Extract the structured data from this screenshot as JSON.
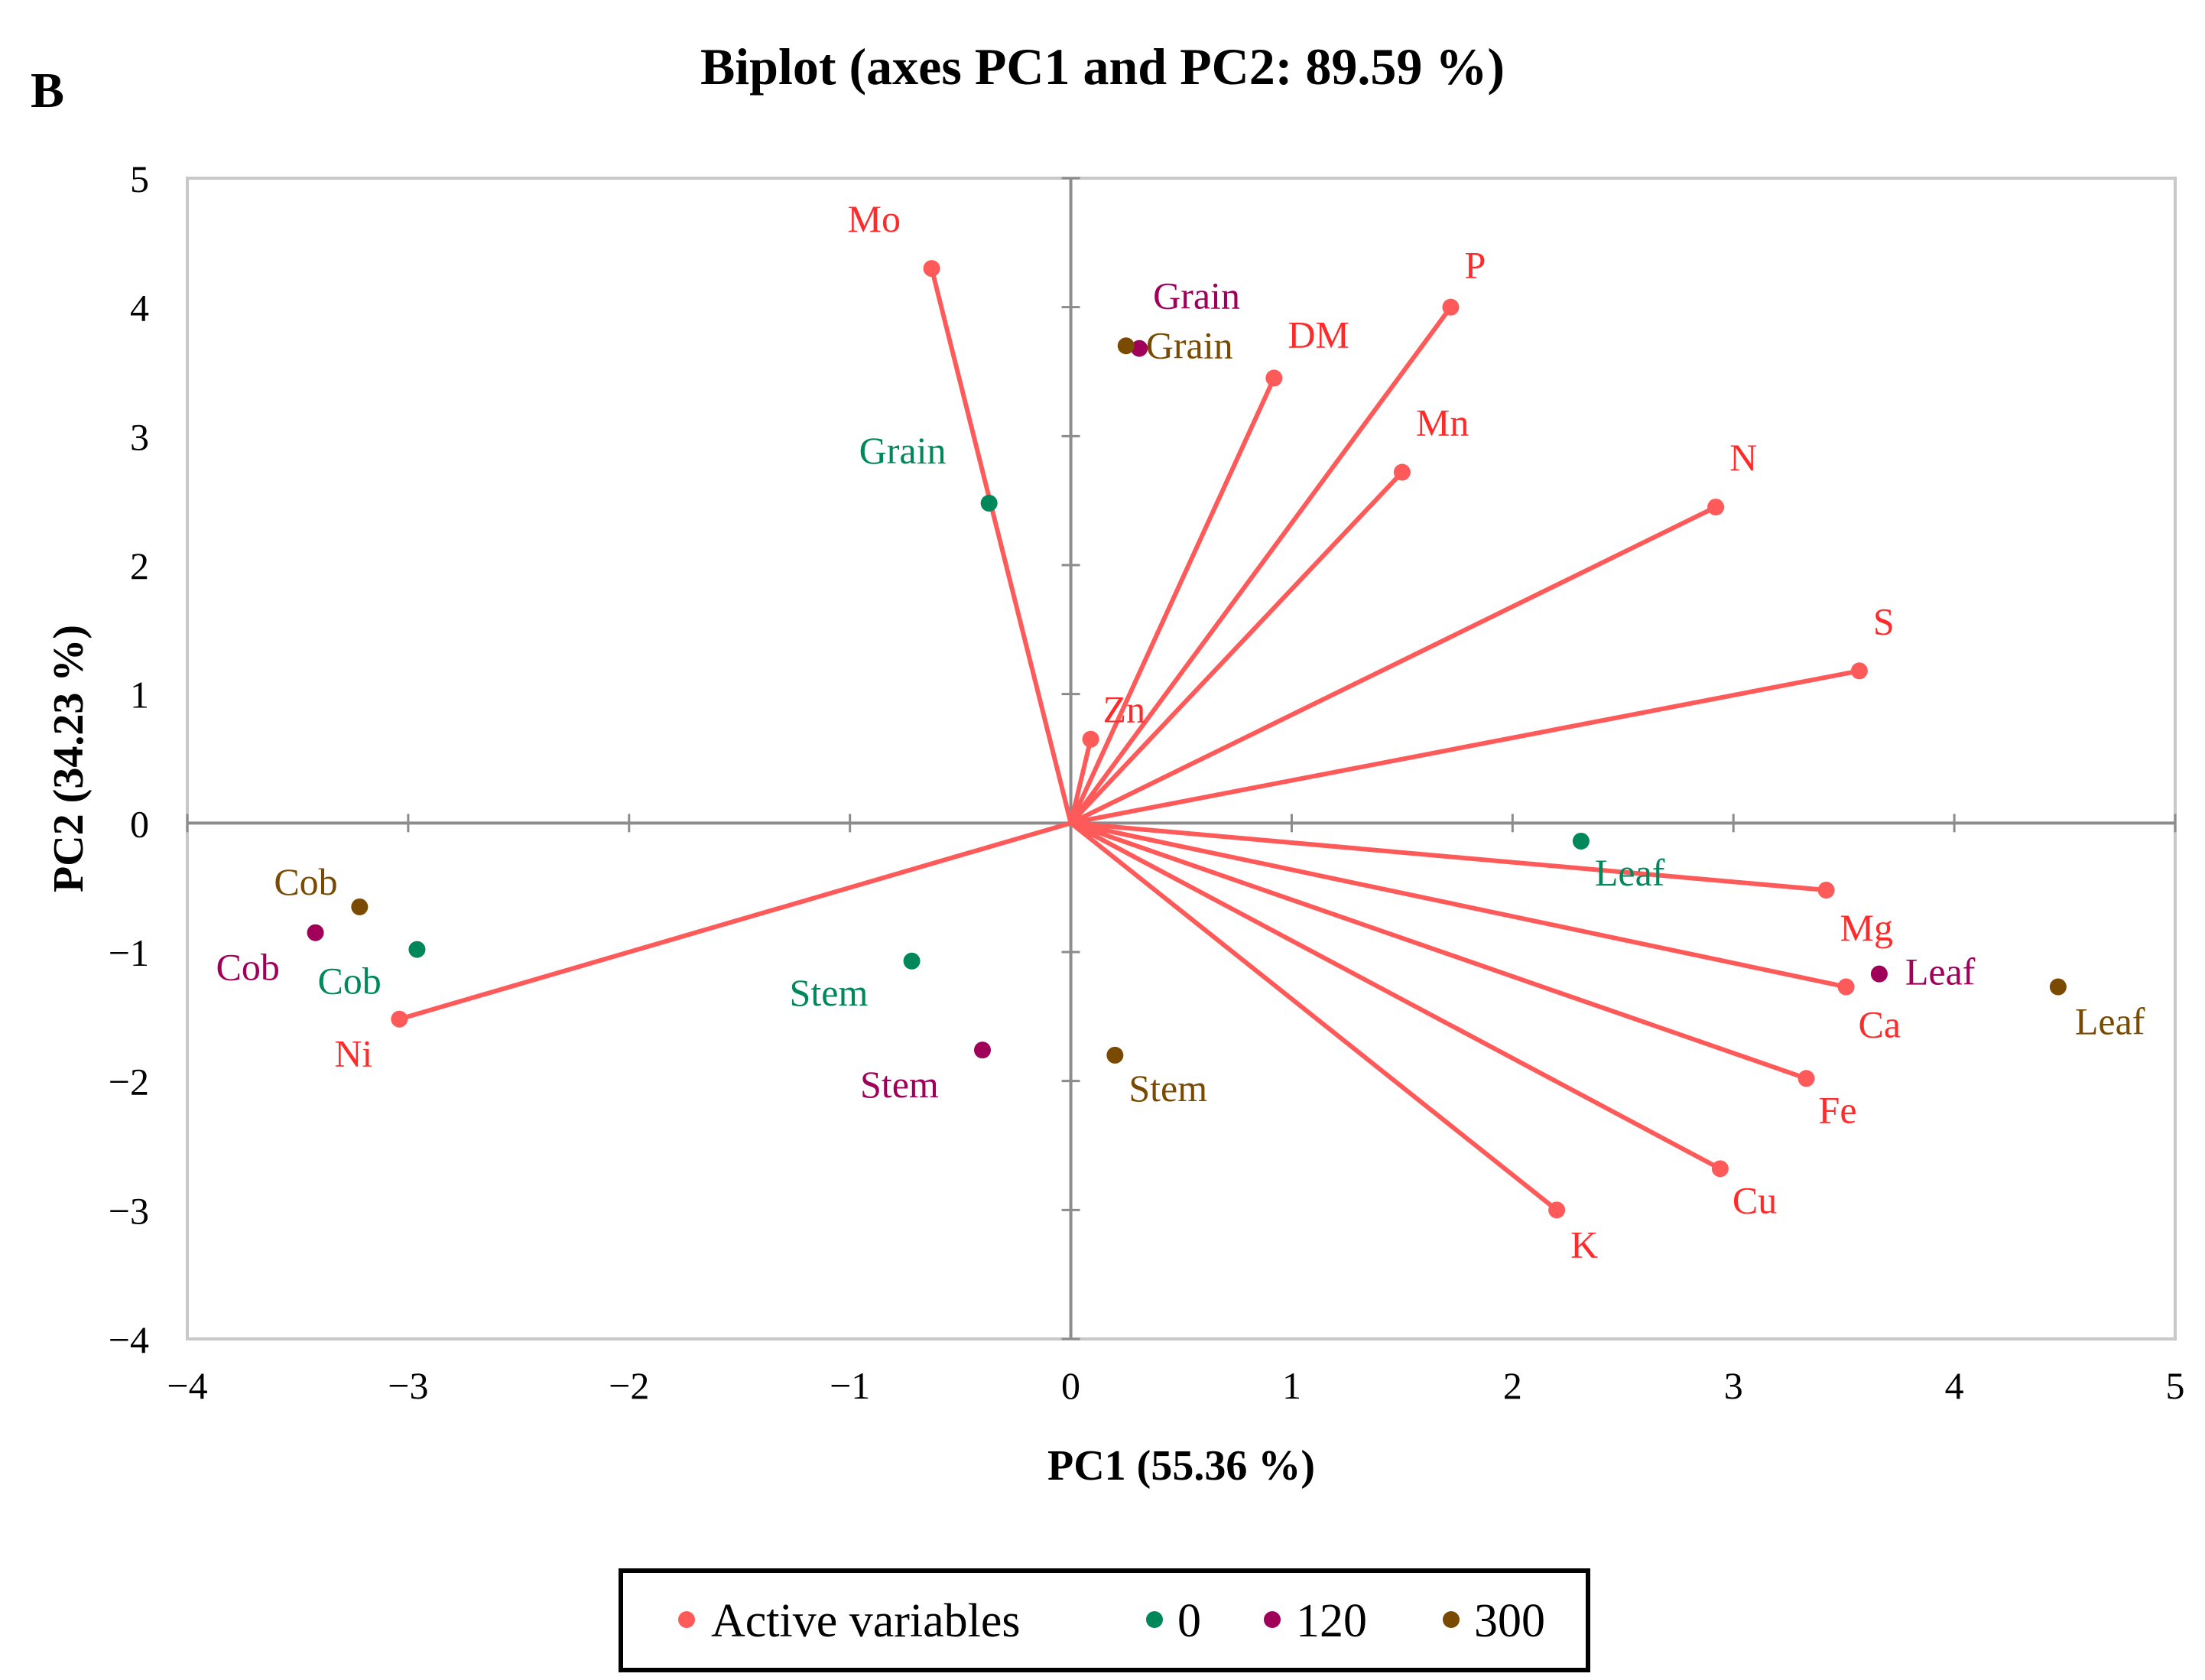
{
  "chart_data": {
    "type": "scatter",
    "panel_label": "B",
    "title": "Biplot (axes PC1 and PC2: 89.59 %)",
    "xlabel": "PC1 (55.36 %)",
    "ylabel": "PC2 (34.23 %)",
    "xlim": [
      -4,
      5
    ],
    "ylim": [
      -4,
      5
    ],
    "xticks": [
      -4,
      -3,
      -2,
      -1,
      0,
      1,
      2,
      3,
      4,
      5
    ],
    "yticks": [
      -4,
      -3,
      -2,
      -1,
      0,
      1,
      2,
      3,
      4,
      5
    ],
    "xtick_labels": [
      "−4",
      "−3",
      "−2",
      "−1",
      "0",
      "1",
      "2",
      "3",
      "4",
      "5"
    ],
    "ytick_labels": [
      "−4",
      "−3",
      "−2",
      "−1",
      "0",
      "1",
      "2",
      "3",
      "4",
      "5"
    ],
    "grid": false,
    "legend_position": "bottom",
    "colors": {
      "active": "#ff5a5a",
      "active_label": "#ff2a2a",
      "s0": "#00875a",
      "s120": "#a0005a",
      "s300": "#7a4a00"
    },
    "series": [
      {
        "name": "Active variables",
        "color": "#ff5a5a",
        "vectors": true,
        "points": [
          {
            "label": "Mo",
            "x": -0.63,
            "y": 4.3
          },
          {
            "label": "P",
            "x": 1.72,
            "y": 4.0
          },
          {
            "label": "DM",
            "x": 0.92,
            "y": 3.45
          },
          {
            "label": "Mn",
            "x": 1.5,
            "y": 2.72
          },
          {
            "label": "N",
            "x": 2.92,
            "y": 2.45
          },
          {
            "label": "S",
            "x": 3.57,
            "y": 1.18
          },
          {
            "label": "Zn",
            "x": 0.09,
            "y": 0.65
          },
          {
            "label": "Mg",
            "x": 3.42,
            "y": -0.52
          },
          {
            "label": "Ca",
            "x": 3.51,
            "y": -1.27
          },
          {
            "label": "Fe",
            "x": 3.33,
            "y": -1.98
          },
          {
            "label": "Cu",
            "x": 2.94,
            "y": -2.68
          },
          {
            "label": "K",
            "x": 2.2,
            "y": -3.0
          },
          {
            "label": "Ni",
            "x": -3.04,
            "y": -1.52
          }
        ]
      },
      {
        "name": "0",
        "color": "#00875a",
        "points": [
          {
            "label": "Grain",
            "x": -0.37,
            "y": 2.48
          },
          {
            "label": "Leaf",
            "x": 2.31,
            "y": -0.14
          },
          {
            "label": "Cob",
            "x": -2.96,
            "y": -0.98
          },
          {
            "label": "Stem",
            "x": -0.72,
            "y": -1.07
          }
        ]
      },
      {
        "name": "120",
        "color": "#a0005a",
        "points": [
          {
            "label": "Grain",
            "x": 0.31,
            "y": 3.68
          },
          {
            "label": "Leaf",
            "x": 3.66,
            "y": -1.17
          },
          {
            "label": "Cob",
            "x": -3.42,
            "y": -0.85
          },
          {
            "label": "Stem",
            "x": -0.4,
            "y": -1.76
          }
        ]
      },
      {
        "name": "300",
        "color": "#7a4a00",
        "points": [
          {
            "label": "Grain",
            "x": 0.25,
            "y": 3.7
          },
          {
            "label": "Leaf",
            "x": 4.47,
            "y": -1.27
          },
          {
            "label": "Cob",
            "x": -3.22,
            "y": -0.65
          },
          {
            "label": "Stem",
            "x": 0.2,
            "y": -1.8
          }
        ]
      }
    ]
  }
}
